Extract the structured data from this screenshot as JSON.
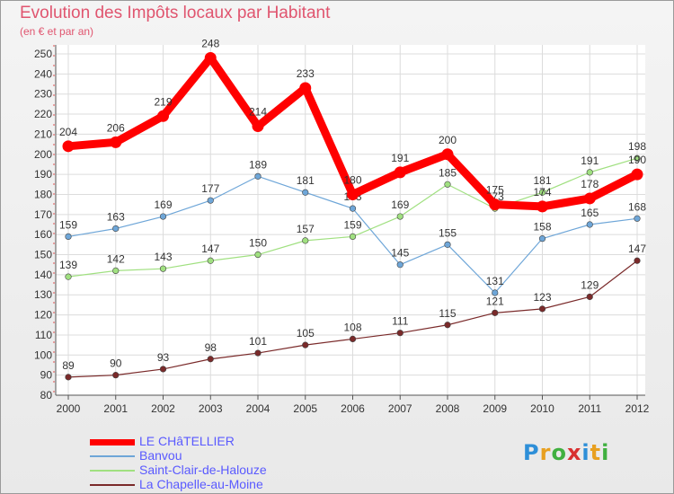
{
  "header": {
    "title": "Evolution des Impôts locaux par Habitant",
    "subtitle": "(en € et par an)"
  },
  "logo": {
    "text": "Proxiti",
    "colors": [
      "#2e8fd8",
      "#e8a020",
      "#40b040",
      "#d83030",
      "#2e8fd8",
      "#e8a020",
      "#40b040"
    ]
  },
  "chart_data": {
    "type": "line",
    "x": [
      "2000",
      "2001",
      "2002",
      "2003",
      "2004",
      "2005",
      "2006",
      "2007",
      "2008",
      "2009",
      "2010",
      "2011",
      "2012"
    ],
    "ylim": [
      80,
      250
    ],
    "yticks": [
      80,
      90,
      100,
      110,
      120,
      130,
      140,
      150,
      160,
      170,
      180,
      190,
      200,
      210,
      220,
      230,
      240,
      250
    ],
    "grid": true,
    "legend_position": "bottom-left",
    "series": [
      {
        "name": "LE CHâTELLIER",
        "color": "#ff0000",
        "values": [
          204,
          206,
          219,
          248,
          214,
          233,
          180,
          191,
          200,
          175,
          174,
          178,
          190
        ]
      },
      {
        "name": "Banvou",
        "color": "#6ea6d8",
        "values": [
          159,
          163,
          169,
          177,
          189,
          181,
          173,
          145,
          155,
          131,
          158,
          165,
          168
        ]
      },
      {
        "name": "Saint-Clair-de-Halouze",
        "color": "#a0e080",
        "values": [
          139,
          142,
          143,
          147,
          150,
          157,
          159,
          169,
          185,
          173,
          181,
          191,
          198
        ]
      },
      {
        "name": "La Chapelle-au-Moine",
        "color": "#7a2a2a",
        "values": [
          89,
          90,
          93,
          98,
          101,
          105,
          108,
          111,
          115,
          121,
          123,
          129,
          147
        ]
      }
    ]
  }
}
